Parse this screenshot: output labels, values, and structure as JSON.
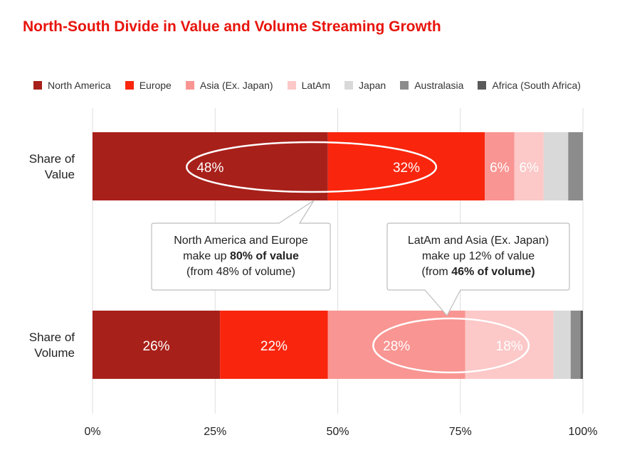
{
  "title": "North-South Divide in Value and Volume Streaming Growth",
  "chart_data": {
    "type": "bar",
    "orientation": "horizontal",
    "stacked": true,
    "categories": [
      "Share of Value",
      "Share of Volume"
    ],
    "category_lines": [
      [
        "Share of",
        "Value"
      ],
      [
        "Share of",
        "Volume"
      ]
    ],
    "series": [
      {
        "name": "North America",
        "color": "#a8201a",
        "values": [
          48,
          26
        ],
        "labels": [
          "48%",
          "26%"
        ]
      },
      {
        "name": "Europe",
        "color": "#f9250d",
        "values": [
          32,
          22
        ],
        "labels": [
          "32%",
          "22%"
        ]
      },
      {
        "name": "Asia (Ex. Japan)",
        "color": "#f99592",
        "values": [
          6,
          28
        ],
        "labels": [
          "6%",
          "28%"
        ]
      },
      {
        "name": "LatAm",
        "color": "#fcc8c8",
        "values": [
          6,
          18
        ],
        "labels": [
          "6%",
          "18%"
        ]
      },
      {
        "name": "Japan",
        "color": "#d9d9d9",
        "values": [
          5,
          3.5
        ],
        "labels": [
          "",
          ""
        ]
      },
      {
        "name": "Australasia",
        "color": "#8c8c8c",
        "values": [
          3,
          2
        ],
        "labels": [
          "",
          ""
        ]
      },
      {
        "name": "Africa (South Africa)",
        "color": "#5a5a5a",
        "values": [
          0,
          0.5
        ],
        "labels": [
          "",
          ""
        ]
      }
    ],
    "xlim": [
      0,
      100
    ],
    "xticks": [
      0,
      25,
      50,
      75,
      100
    ],
    "xtick_labels": [
      "0%",
      "25%",
      "50%",
      "75%",
      "100%"
    ],
    "grid": "vertical",
    "legend_position": "top"
  },
  "callouts": [
    {
      "lines": [
        [
          "North America and Europe"
        ],
        [
          "make up ",
          "80% of value"
        ],
        [
          "(from 48% of volume)"
        ]
      ]
    },
    {
      "lines": [
        [
          "LatAm and Asia (Ex. Japan)"
        ],
        [
          "make up 12% of value"
        ],
        [
          "(from ",
          "46% of volume)"
        ]
      ]
    }
  ]
}
